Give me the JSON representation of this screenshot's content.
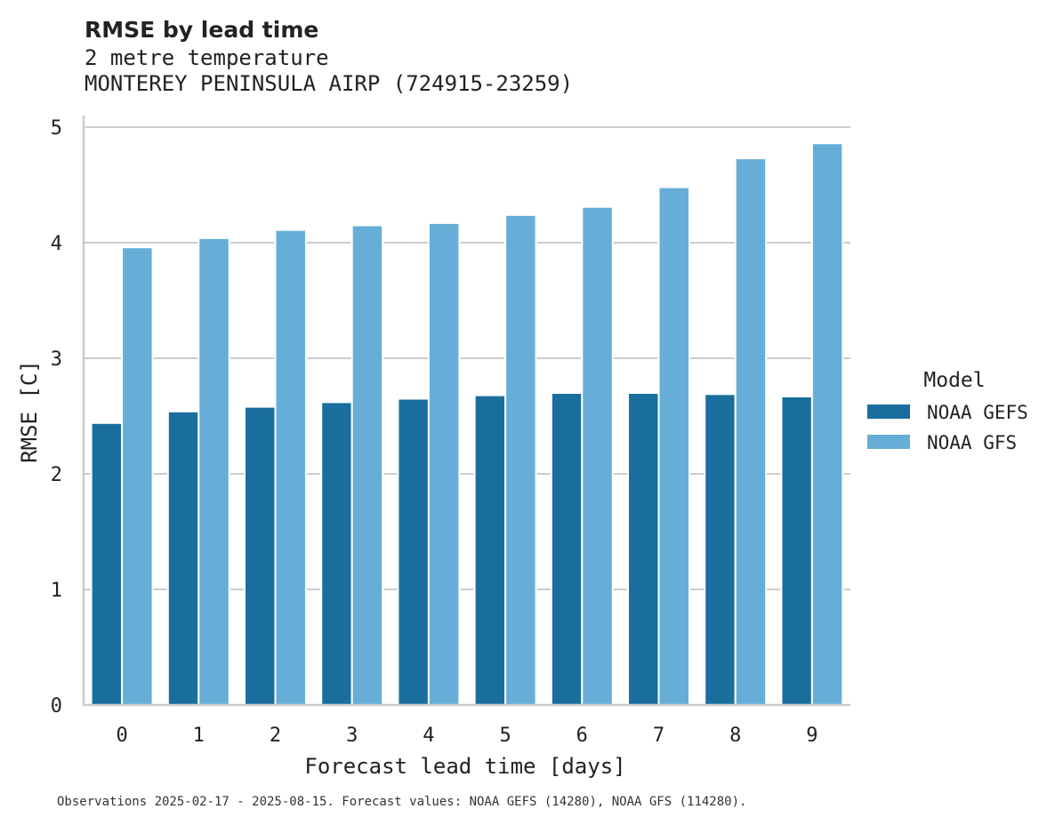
{
  "chart_data": {
    "type": "bar",
    "title": "RMSE by lead time",
    "subtitle_lines": [
      "2 metre temperature",
      "MONTEREY PENINSULA AIRP (724915-23259)"
    ],
    "xlabel": "Forecast lead time [days]",
    "ylabel": "RMSE [C]",
    "categories": [
      "0",
      "1",
      "2",
      "3",
      "4",
      "5",
      "6",
      "7",
      "8",
      "9"
    ],
    "ylim": [
      0,
      5.1
    ],
    "yticks": [
      0,
      1,
      2,
      3,
      4,
      5
    ],
    "grid": "horizontal",
    "legend": {
      "title": "Model",
      "position": "right"
    },
    "series": [
      {
        "name": "NOAA GEFS",
        "color": "#1a6e9e",
        "values": [
          2.44,
          2.54,
          2.58,
          2.62,
          2.65,
          2.68,
          2.7,
          2.7,
          2.69,
          2.67
        ]
      },
      {
        "name": "NOAA GFS",
        "color": "#66aed7",
        "values": [
          3.96,
          4.04,
          4.11,
          4.15,
          4.17,
          4.24,
          4.31,
          4.48,
          4.73,
          4.86
        ]
      }
    ],
    "footnote": "Observations 2025-02-17 - 2025-08-15. Forecast values: NOAA GEFS (14280), NOAA GFS (114280)."
  }
}
